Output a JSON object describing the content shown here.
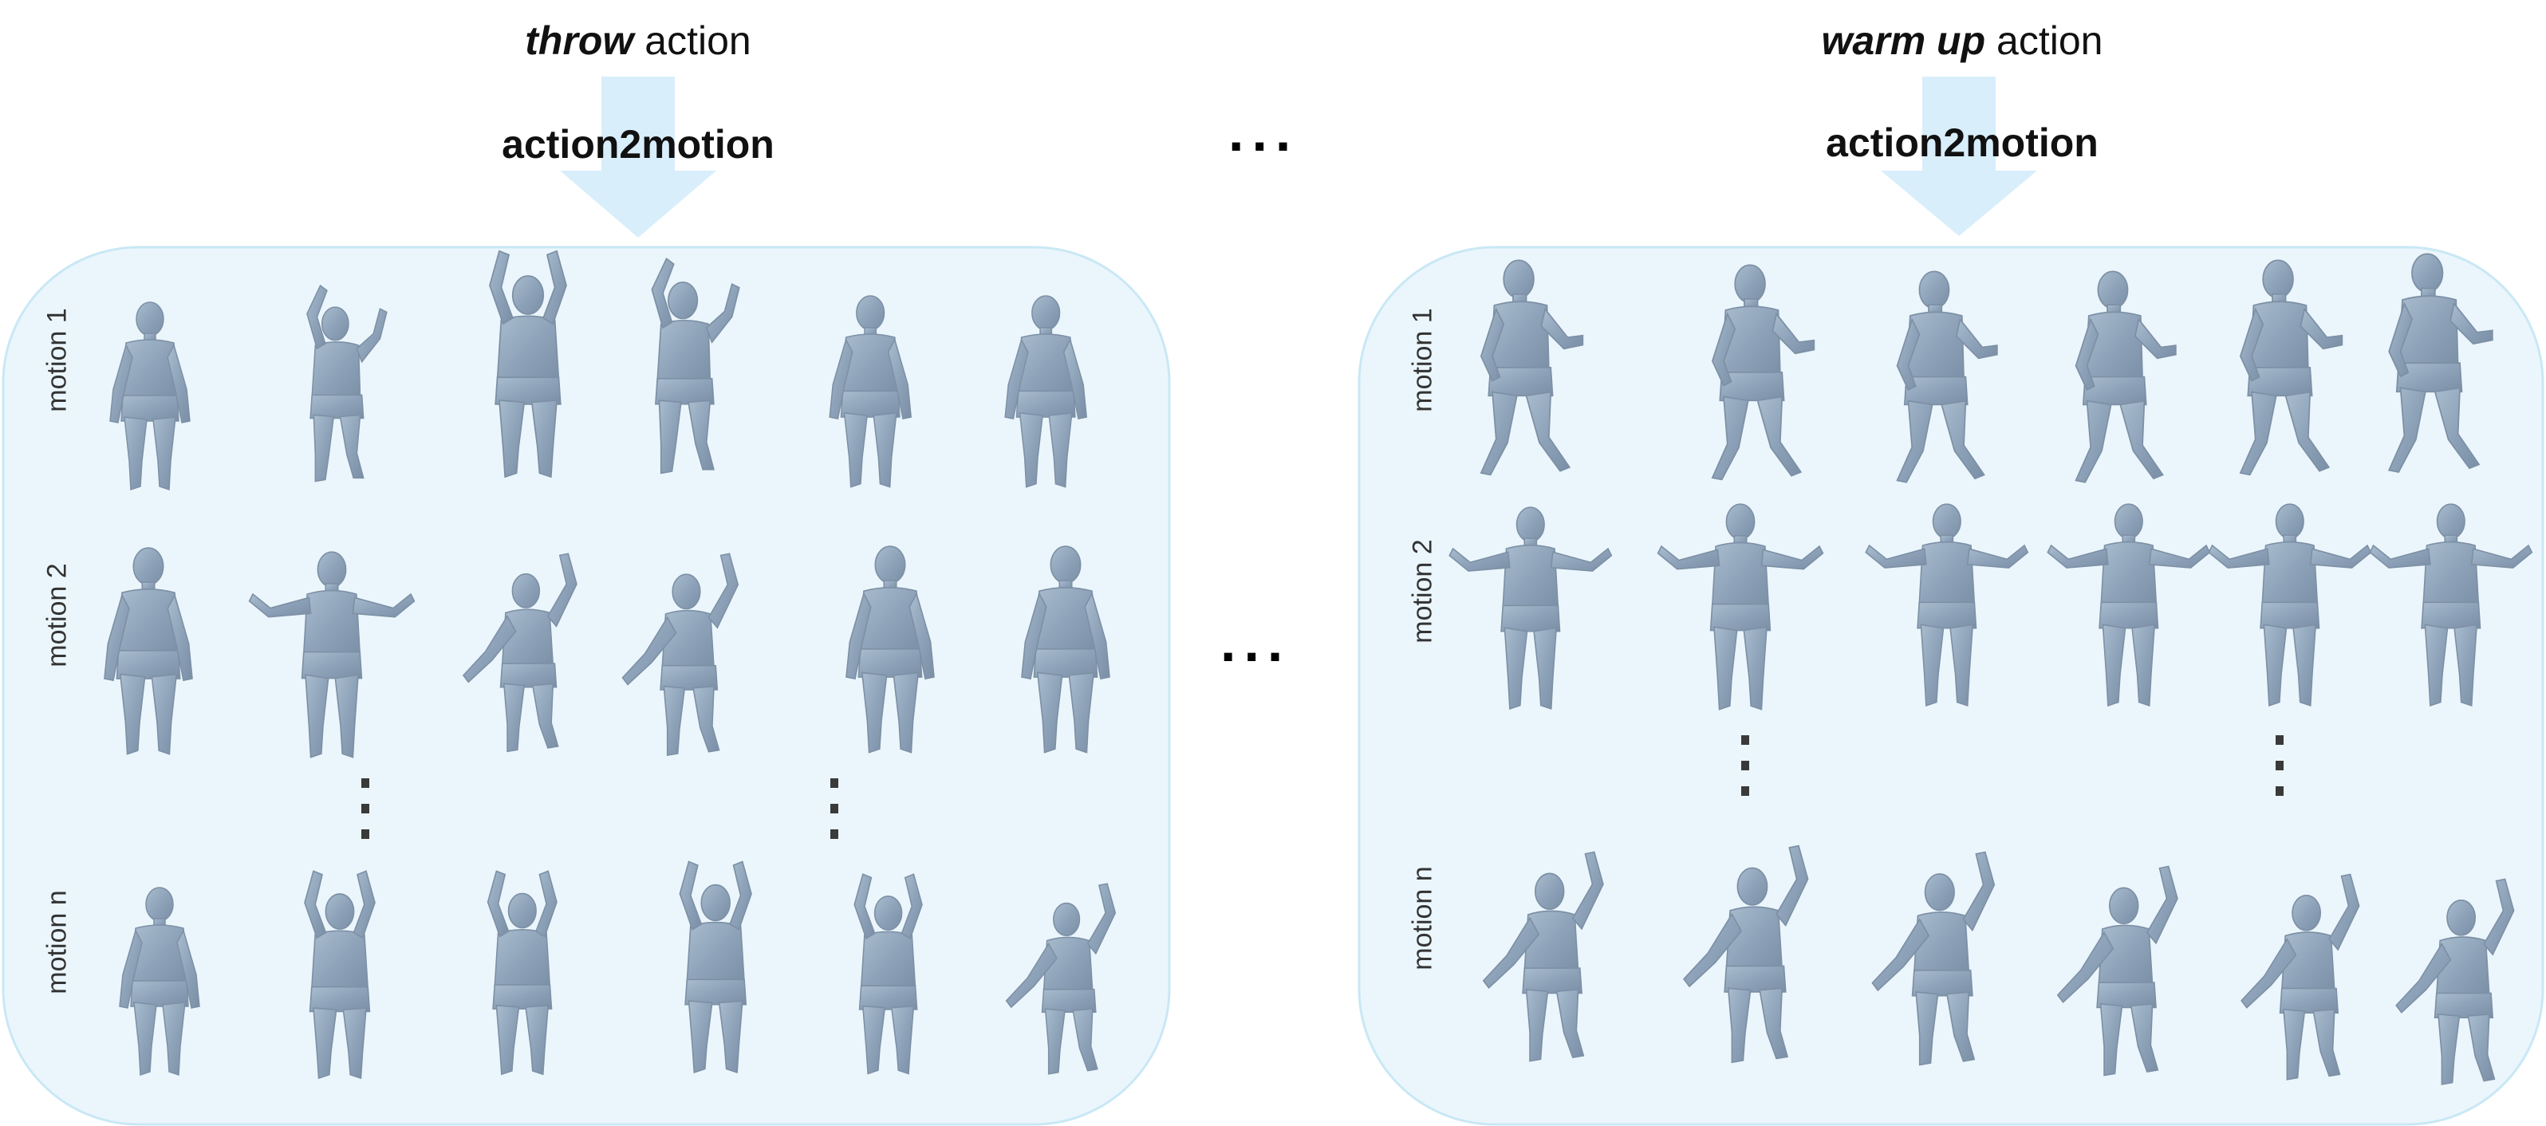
{
  "panels": [
    {
      "action_word": "throw",
      "action_suffix": " action",
      "model_label": "action2motion",
      "rows": [
        "motion 1",
        "motion 2",
        "motion n"
      ],
      "colors": {
        "box_fill": "#ebf6fc",
        "box_stroke": "#c9e8f5",
        "arrow": "#d8eefb"
      }
    },
    {
      "action_word": "warm up",
      "action_suffix": " action",
      "model_label": "action2motion",
      "rows": [
        "motion 1",
        "motion 2",
        "motion n"
      ],
      "colors": {
        "box_fill": "#ebf6fc",
        "box_stroke": "#c9e8f5",
        "arrow": "#d8eefb"
      }
    }
  ],
  "between_panels": "...",
  "figure_color": "#8fa3b8",
  "icons": [
    "human-mesh-figure",
    "vertical-ellipsis-icon",
    "horizontal-ellipsis-icon",
    "down-arrow-icon"
  ]
}
